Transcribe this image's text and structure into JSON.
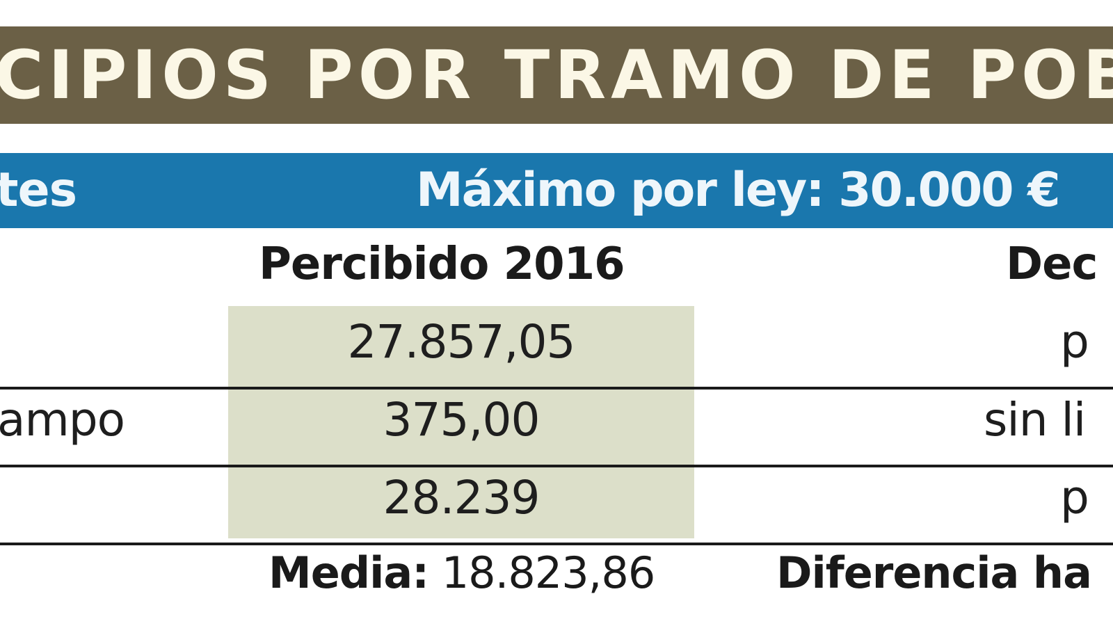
{
  "header": {
    "title": "CIPIOS POR TRAMO DE POBL",
    "band_left": "tes",
    "band_right": "Máximo por ley: 30.000 €"
  },
  "table": {
    "columns": [
      "Percibido 2016",
      "Dec"
    ],
    "rows": [
      {
        "label": "",
        "percibido": "27.857,05",
        "dec": "p"
      },
      {
        "label": "ampo",
        "percibido": "375,00",
        "dec": "sin li"
      },
      {
        "label": "",
        "percibido": "28.239",
        "dec": "p"
      }
    ]
  },
  "footer": {
    "media_label": "Media:",
    "media_value": "18.823,86",
    "diferencia_label": "Diferencia ha"
  },
  "colors": {
    "title_band": "#6b6046",
    "blue_band": "#1a77ad",
    "shaded_column": "#dcdfc9"
  }
}
